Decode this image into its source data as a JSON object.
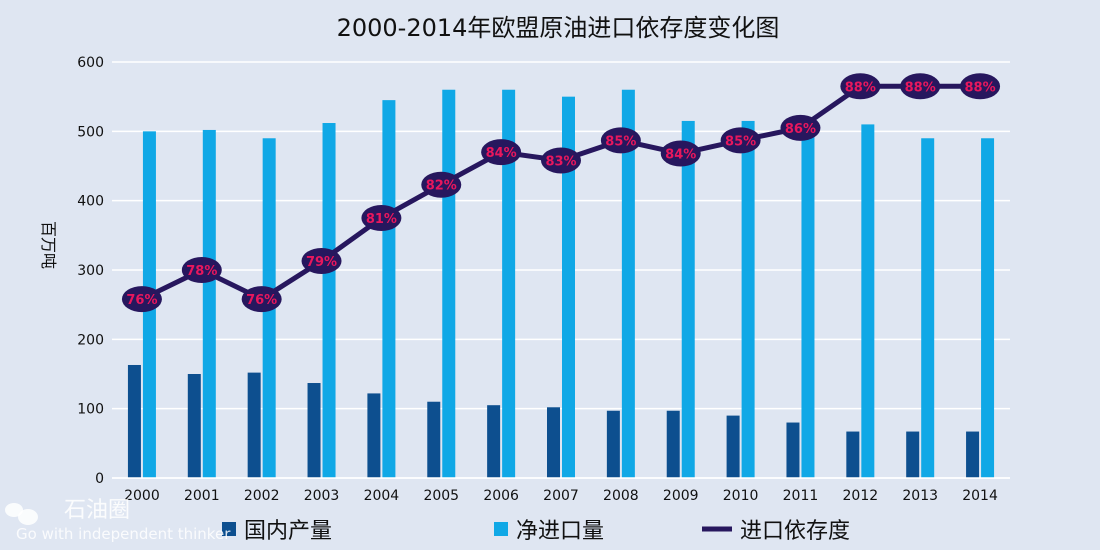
{
  "chart_data": {
    "type": "bar",
    "title": "2000-2014年欧盟原油进口依存度变化图",
    "ylabel": "百万吨",
    "ylim": [
      0,
      600
    ],
    "yticks": [
      0,
      100,
      200,
      300,
      400,
      500,
      600
    ],
    "grid": true,
    "legend_position": "bottom",
    "categories": [
      "2000",
      "2001",
      "2002",
      "2003",
      "2004",
      "2005",
      "2006",
      "2007",
      "2008",
      "2009",
      "2010",
      "2011",
      "2012",
      "2013",
      "2014"
    ],
    "series": [
      {
        "name": "国内产量",
        "type": "bar",
        "color": "#0d4f8f",
        "values": [
          163,
          150,
          152,
          137,
          122,
          110,
          105,
          102,
          97,
          97,
          90,
          80,
          67,
          67,
          67
        ]
      },
      {
        "name": "净进口量",
        "type": "bar",
        "color": "#10a8e6",
        "values": [
          500,
          502,
          490,
          512,
          545,
          560,
          560,
          550,
          560,
          515,
          515,
          505,
          510,
          490,
          490
        ]
      },
      {
        "name": "进口依存度",
        "type": "line",
        "color": "#27175e",
        "values": [
          76,
          78,
          76,
          79,
          81,
          82,
          84,
          83,
          85,
          84,
          85,
          86,
          88,
          88,
          88
        ],
        "labels": [
          "76%",
          "78%",
          "76%",
          "79%",
          "81%",
          "82%",
          "84%",
          "83%",
          "85%",
          "84%",
          "85%",
          "86%",
          "88%",
          "88%",
          "88%"
        ],
        "plot_positions_on_left_axis": [
          258,
          300,
          258,
          313,
          375,
          423,
          470,
          458,
          487,
          468,
          487,
          505,
          565,
          565,
          565
        ]
      }
    ]
  },
  "watermark": {
    "brand": "石油圈",
    "slogan": "Go with independent thinker"
  }
}
